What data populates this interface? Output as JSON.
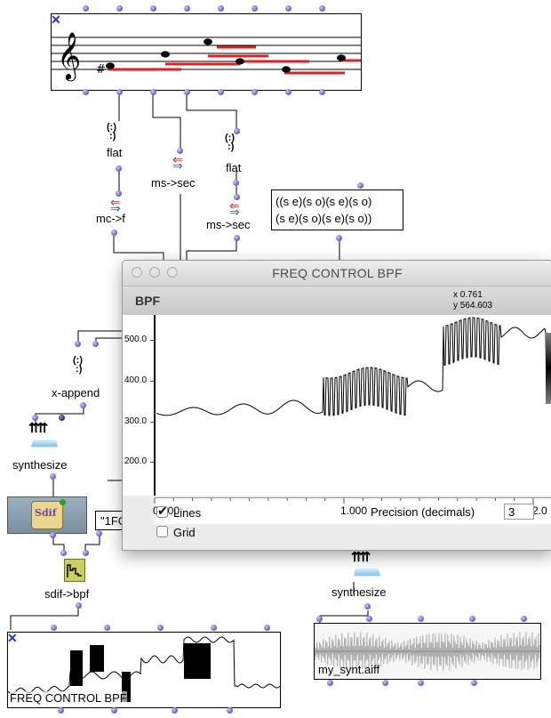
{
  "boxes": {
    "flat_1": "flat",
    "flat_2": "flat",
    "ms_sec_1": "ms->sec",
    "ms_sec_2": "ms->sec",
    "mc_f": "mc->f",
    "list_line1": "((s e)(s o)(s e)(s o)",
    "list_line2": "(s e)(s o)(s e)(s o))",
    "x_append": "x-append",
    "synthesize_left": "synthesize",
    "sdif_label": "Sdif",
    "string_value": "\"1FC",
    "sdif_bpf": "sdif->bpf",
    "synthesize_right": "synthesize",
    "bpf_box_label": "FREQ CONTROL BPF",
    "sound_box_label": "my_synt.aiff"
  },
  "window": {
    "title": "FREQ CONTROL BPF",
    "header": "BPF",
    "coord_x": "x  0.761",
    "coord_y": "y  564.603",
    "y_ticks": [
      "500.0",
      "400.0",
      "300.0",
      "200.0"
    ],
    "x_ticks": [
      "0.000",
      "1.000",
      "2.0"
    ],
    "lines_label": "Lines",
    "lines_checked": true,
    "grid_label": "Grid",
    "grid_checked": false,
    "precision_label": "Precision (decimals)",
    "precision_value": "3"
  },
  "colors": {
    "note_line": "#e02020",
    "inlet": "#6a6acc",
    "window_bg": "#ececec"
  }
}
